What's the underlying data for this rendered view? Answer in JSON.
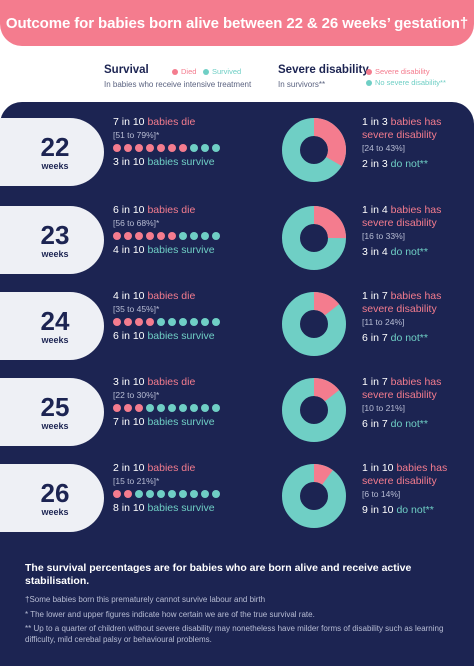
{
  "header": {
    "title": "Outcome for babies born alive between 22 & 26 weeks’ gestation†"
  },
  "legend": {
    "survival_title": "Survival",
    "survival_sub": "In babies who receive intensive treatment",
    "died_label": "Died",
    "survived_label": "Survived",
    "disability_title": "Severe disability",
    "disability_sub": "In survivors**",
    "severe_label": "Severe disability",
    "no_severe_label": "No severe disability**"
  },
  "colors": {
    "pink": "#f47c8e",
    "teal": "#6fcfc5",
    "navy": "#1c2452",
    "badge": "#eef0f5"
  },
  "rows": [
    {
      "weeks": "22",
      "unit": "weeks",
      "die_count": "7 in 10",
      "die_text": "babies die",
      "die_range": "[51 to 79%]*",
      "died_dots": 7,
      "survive_count": "3 in 10",
      "survive_text": "babies survive",
      "dis_count": "1 in 3",
      "dis_text": "babies has severe disability",
      "dis_range": "[24 to 43%]",
      "not_count": "2 in 3",
      "not_text": "do not**",
      "severe_fraction": 0.333
    },
    {
      "weeks": "23",
      "unit": "weeks",
      "die_count": "6 in 10",
      "die_text": "babies die",
      "die_range": "[56 to 68%]*",
      "died_dots": 6,
      "survive_count": "4 in 10",
      "survive_text": "babies survive",
      "dis_count": "1 in 4",
      "dis_text": "babies has severe disability",
      "dis_range": "[16 to 33%]",
      "not_count": "3 in 4",
      "not_text": "do not**",
      "severe_fraction": 0.25
    },
    {
      "weeks": "24",
      "unit": "weeks",
      "die_count": "4 in 10",
      "die_text": "babies die",
      "die_range": "[35 to 45%]*",
      "died_dots": 4,
      "survive_count": "6 in 10",
      "survive_text": "babies survive",
      "dis_count": "1 in 7",
      "dis_text": "babies has severe disability",
      "dis_range": "[11 to 24%]",
      "not_count": "6 in 7",
      "not_text": "do not**",
      "severe_fraction": 0.143
    },
    {
      "weeks": "25",
      "unit": "weeks",
      "die_count": "3 in 10",
      "die_text": "babies die",
      "die_range": "[22 to 30%]*",
      "died_dots": 3,
      "survive_count": "7 in 10",
      "survive_text": "babies survive",
      "dis_count": "1 in 7",
      "dis_text": "babies has severe disability",
      "dis_range": "[10 to 21%]",
      "not_count": "6 in 7",
      "not_text": "do not**",
      "severe_fraction": 0.143
    },
    {
      "weeks": "26",
      "unit": "weeks",
      "die_count": "2 in 10",
      "die_text": "babies die",
      "die_range": "[15 to 21%]*",
      "died_dots": 2,
      "survive_count": "8 in 10",
      "survive_text": "babies survive",
      "dis_count": "1 in 10",
      "dis_text": "babies has severe disability",
      "dis_range": "[6 to 14%]",
      "not_count": "9 in 10",
      "not_text": "do not**",
      "severe_fraction": 0.1
    }
  ],
  "footer": {
    "main": "The survival percentages are for babies who are born alive and receive active stabilisation.",
    "note1": "†Some babies born this prematurely cannot survive labour and birth",
    "note2": "* The lower and upper figures indicate how certain we are of the true survival rate.",
    "note3": "** Up to a quarter of children without severe disability may nonetheless have milder forms of disability such as learning difficulty, mild cerebal palsy or behavioural problems."
  }
}
